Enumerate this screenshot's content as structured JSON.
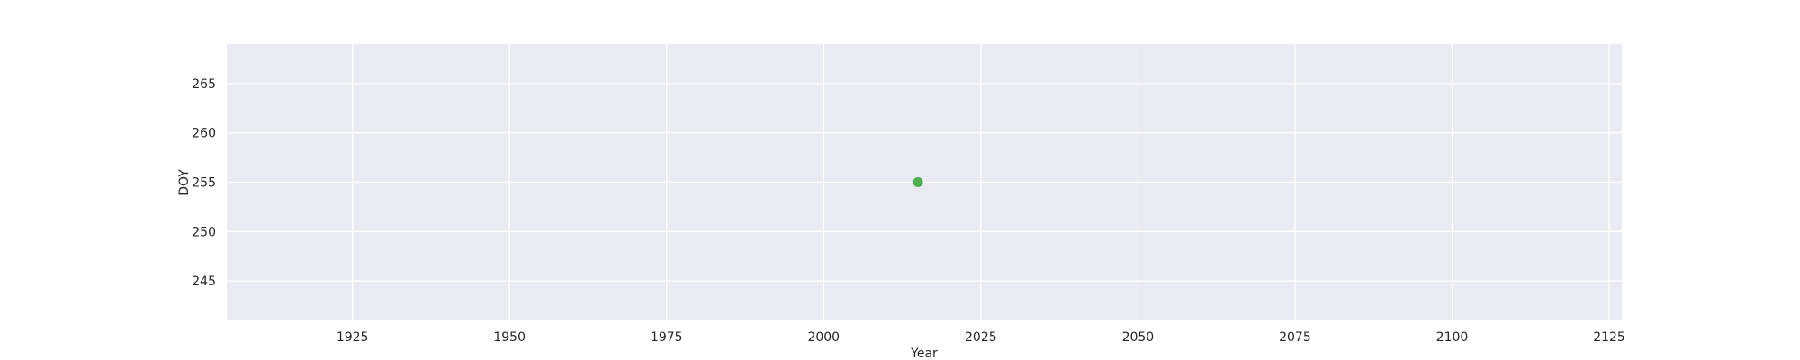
{
  "chart_data": {
    "type": "scatter",
    "title": "",
    "xlabel": "Year",
    "ylabel": "DOY",
    "xlim": [
      1905,
      2127
    ],
    "ylim": [
      241,
      269
    ],
    "xticks": [
      1925,
      1950,
      1975,
      2000,
      2025,
      2050,
      2075,
      2100,
      2125
    ],
    "yticks": [
      245,
      250,
      255,
      260,
      265
    ],
    "grid": true,
    "background_color": "#eaeaf2",
    "grid_color": "#ffffff",
    "series": [
      {
        "color": "#4caf50",
        "points": [
          {
            "x": 2015,
            "y": 255
          }
        ]
      }
    ]
  }
}
